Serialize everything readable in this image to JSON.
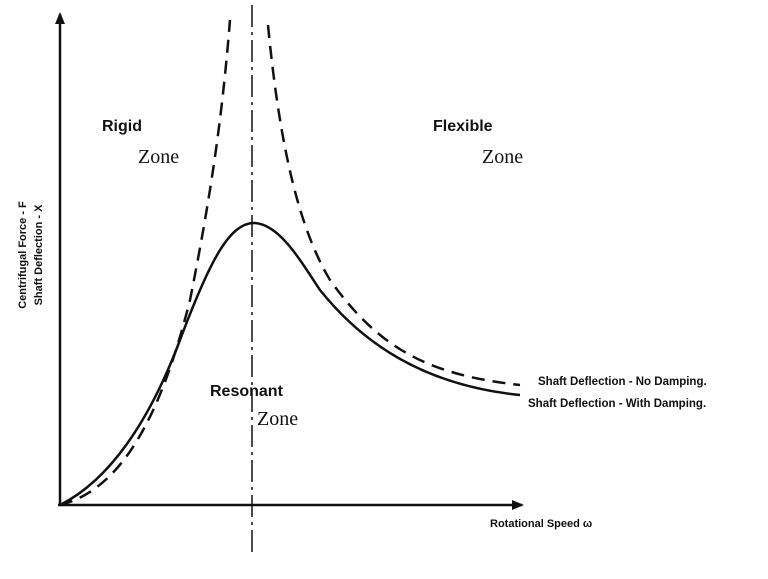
{
  "zones": [
    {
      "name": "Rigid",
      "word": "Zone"
    },
    {
      "name": "Flexible",
      "word": "Zone"
    },
    {
      "name": "Resonant",
      "word": "Zone"
    }
  ],
  "y_axis": {
    "labels": [
      "Centrifugal Force - F",
      "Shaft Deflection - X"
    ]
  },
  "x_axis": {
    "label": "Rotational Speed ω"
  },
  "curves": [
    {
      "label": "Shaft Deflection - No Damping."
    },
    {
      "label": "Shaft Deflection - With Damping."
    }
  ]
}
